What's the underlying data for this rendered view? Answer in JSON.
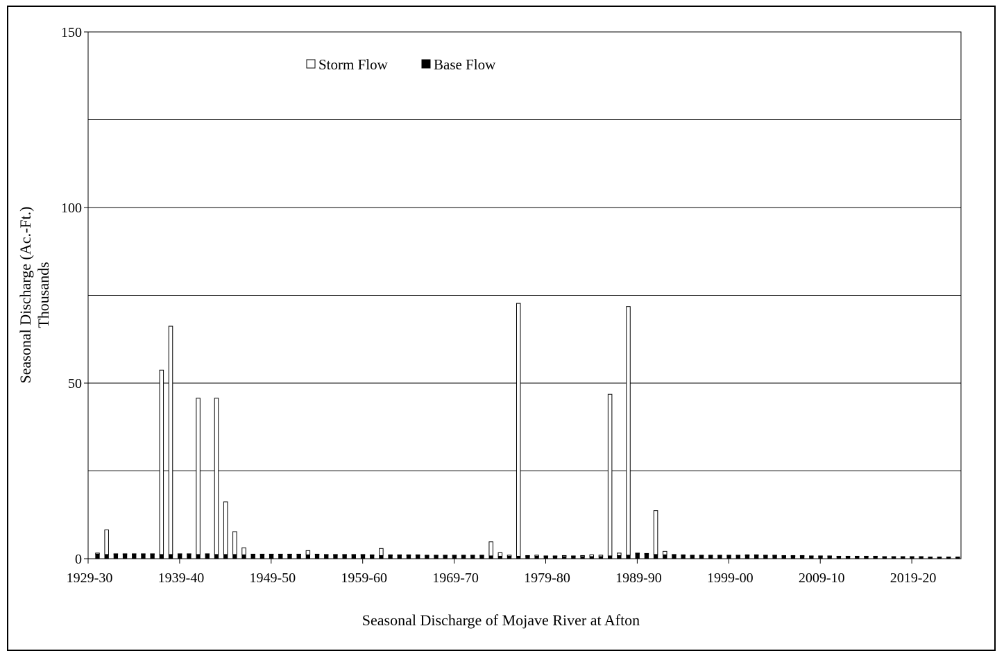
{
  "chart_data": {
    "type": "bar",
    "stacked": true,
    "title": "Seasonal Discharge of Mojave River at Afton",
    "ylabel_line1": "Seasonal Discharge (Ac.-Ft.)",
    "ylabel_line2": "Thousands",
    "ylim": [
      0,
      150
    ],
    "yticks": [
      0,
      50,
      100,
      150
    ],
    "ytick_labels": [
      "0",
      "50",
      "100",
      "150"
    ],
    "gridlines": [
      25,
      50,
      75,
      100,
      125
    ],
    "grid": true,
    "legend_position": "top-center",
    "xtick_labels": [
      "1929-30",
      "1939-40",
      "1949-50",
      "1959-60",
      "1969-70",
      "1979-80",
      "1989-90",
      "1999-00",
      "2009-10",
      "2019-20"
    ],
    "series": [
      {
        "name": "Storm Flow",
        "color": "#ffffff",
        "values": [
          0.3,
          7.0,
          0.2,
          0.2,
          0.2,
          0.2,
          0.2,
          52.5,
          65.0,
          0.2,
          0.2,
          44.5,
          0.2,
          44.5,
          15.0,
          6.5,
          2.0,
          0.2,
          0.2,
          0.2,
          0.2,
          0.2,
          0.2,
          1.2,
          0.2,
          0.2,
          0.2,
          0.2,
          0.2,
          0.2,
          0.2,
          2.0,
          0.2,
          0.2,
          0.2,
          0.2,
          0.2,
          0.2,
          0.2,
          0.2,
          0.2,
          0.2,
          0.2,
          4.0,
          1.0,
          0.3,
          72.0,
          0.2,
          0.3,
          0.2,
          0.2,
          0.3,
          0.2,
          0.3,
          0.5,
          0.4,
          46.0,
          0.7,
          70.8,
          0.2,
          0.2,
          12.5,
          1.0,
          0.2,
          0.2,
          0.2,
          0.2,
          0.2,
          0.2,
          0.2,
          0.2,
          0.2,
          0.2,
          0.2,
          0.2,
          0.2,
          0.2,
          0.2,
          0.2,
          0.2,
          0.2,
          0.2,
          0.2,
          0.2,
          0.2,
          0.2,
          0.2,
          0.2,
          0.2,
          0.2,
          0.2,
          0.2,
          0.2,
          0.2,
          0.2,
          0.2,
          0.2,
          0.2,
          0.2,
          0.2,
          0.2,
          0.2,
          0.2,
          0.2,
          0.2,
          0.2,
          0.2,
          0.2,
          0.2,
          0.2,
          0.2,
          0.2,
          0.2,
          0.2,
          0.2,
          0.2,
          0.2,
          0.2,
          0.2,
          0.2,
          0.2,
          0.2,
          0.2,
          0.2,
          0.2,
          0.2,
          0.2,
          0.2,
          0.2,
          0.2,
          0.2,
          0.2,
          0.2,
          0.2,
          0.2,
          0.2,
          0.2,
          0.2,
          0.2,
          0.2,
          0.2,
          0.2,
          0.2,
          0.2,
          0.2,
          0.2,
          0.2,
          0.2,
          0.2,
          0.2,
          0.2,
          0.2,
          0.2,
          0.2,
          0.2,
          0.2,
          0.2,
          0.2,
          0.2,
          0.2,
          0.2,
          0.2,
          0.2,
          0.2,
          0.2,
          0.2,
          0.2,
          0.2,
          0.2,
          0.2,
          0.2,
          0.2,
          0.2,
          0.2,
          0.2,
          0.2,
          0.2,
          0.2,
          0.2,
          0.2,
          0.2,
          0.2,
          0.2,
          0.2,
          0.2,
          0.2,
          0.2,
          0.2,
          0.2,
          0.2,
          0.2,
          0.2,
          0.2,
          0.2,
          0.2,
          0.2,
          0.2,
          0.2,
          0.2,
          0.2,
          0.2,
          0.2,
          0.2,
          0.2,
          0.2,
          0.2,
          0.2,
          0.2,
          0.2,
          0.2,
          0.2,
          0.2,
          0.2,
          0.2
        ]
      },
      {
        "name": "Base Flow",
        "color": "#000000",
        "values": [
          1.3,
          1.2,
          1.2,
          1.2,
          1.2,
          1.2,
          1.2,
          1.2,
          1.2,
          1.2,
          1.2,
          1.2,
          1.2,
          1.2,
          1.2,
          1.2,
          1.1,
          1.1,
          1.1,
          1.1,
          1.1,
          1.1,
          1.1,
          1.1,
          1.1,
          1.0,
          1.0,
          1.0,
          1.0,
          1.0,
          0.9,
          0.9,
          0.9,
          0.9,
          0.9,
          0.9,
          0.8,
          0.8,
          0.8,
          0.8,
          0.8,
          0.8,
          0.8,
          0.8,
          0.7,
          0.7,
          0.7,
          0.7,
          0.7,
          0.6,
          0.6,
          0.6,
          0.6,
          0.6,
          0.6,
          0.6,
          0.8,
          0.9,
          1.0,
          1.4,
          1.3,
          1.2,
          1.1,
          1.0,
          0.9,
          0.8,
          0.8,
          0.8,
          0.8,
          0.8,
          0.8,
          0.9,
          0.9,
          0.8,
          0.8,
          0.7,
          0.7,
          0.7,
          0.6,
          0.6,
          0.6,
          0.5,
          0.5,
          0.5,
          0.5,
          0.5,
          0.4,
          0.4,
          0.4,
          0.4,
          0.4,
          0.3,
          0.3,
          0.3,
          0.3,
          0.3,
          0.3,
          0.3,
          0.3,
          0.3,
          0.3,
          0.3,
          0.3,
          0.3,
          0.3,
          0.3,
          0.3,
          0.3,
          0.3,
          0.3,
          0.3,
          0.3,
          0.3,
          0.3,
          0.3,
          0.3,
          0.3,
          0.3,
          0.3,
          0.3,
          0.3,
          0.3,
          0.3,
          0.3,
          0.3,
          0.3,
          0.3,
          0.3,
          0.3,
          0.3,
          0.3,
          0.3,
          0.3,
          0.3,
          0.3,
          0.3,
          0.3,
          0.3,
          0.3,
          0.3,
          0.3,
          0.3,
          0.3,
          0.3,
          0.3,
          0.3,
          0.3,
          0.3,
          0.3,
          0.3,
          0.3,
          0.3,
          0.3,
          0.3,
          0.3,
          0.3,
          0.3,
          0.3,
          0.3,
          0.3,
          0.3,
          0.3,
          0.3,
          0.3,
          0.3,
          0.3,
          0.3,
          0.3,
          0.3,
          0.3,
          0.3,
          0.3,
          0.3,
          0.3,
          0.3,
          0.3,
          0.3,
          0.3,
          0.3,
          0.3,
          0.3,
          0.3,
          0.3,
          0.3,
          0.3,
          0.3,
          0.3,
          0.3,
          0.3,
          0.3,
          0.3,
          0.3,
          0.3,
          0.3,
          0.3,
          0.3,
          0.3,
          0.3,
          0.3,
          0.3,
          0.3,
          0.3,
          0.3,
          0.3,
          0.3,
          0.3,
          0.3,
          0.3,
          0.3,
          0.3,
          0.3,
          0.3
        ]
      }
    ]
  }
}
